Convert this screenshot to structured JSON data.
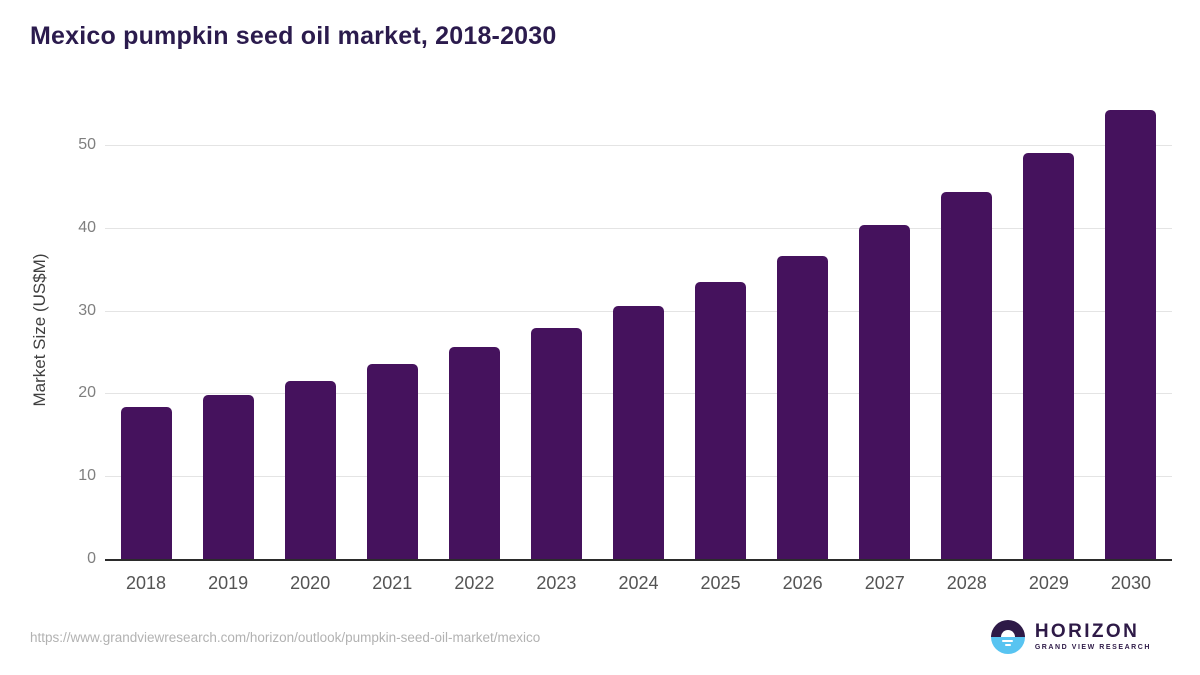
{
  "title": "Mexico pumpkin seed oil market, 2018-2030",
  "chart_data": {
    "type": "bar",
    "title": "Mexico pumpkin seed oil market, 2018-2030",
    "categories": [
      "2018",
      "2019",
      "2020",
      "2021",
      "2022",
      "2023",
      "2024",
      "2025",
      "2026",
      "2027",
      "2028",
      "2029",
      "2030"
    ],
    "values": [
      18.4,
      19.8,
      21.5,
      23.5,
      25.6,
      27.9,
      30.5,
      33.4,
      36.6,
      40.3,
      44.3,
      49.0,
      54.2
    ],
    "xlabel": "",
    "ylabel": "Market Size (US$M)",
    "ylim": [
      0,
      55.5
    ],
    "yticks": [
      0,
      10,
      20,
      30,
      40,
      50
    ],
    "grid": true,
    "legend": "none",
    "bar_color": "#45125d"
  },
  "colors": {
    "title_text": "#2b1b4d",
    "bar": "#45125d",
    "gridline": "#e4e4e4",
    "axis_line": "#2b2b2b",
    "y_tick_text": "#7f7f7f",
    "x_tick_text": "#545454",
    "axis_title_text": "#3f3f3f",
    "url_text": "#b2b2b2",
    "logo_purple": "#2e1a47",
    "logo_blue": "#58c4f1"
  },
  "footer": {
    "source_url": "https://www.grandviewresearch.com/horizon/outlook/pumpkin-seed-oil-market/mexico",
    "logo": {
      "name": "HORIZON",
      "subtitle": "GRAND VIEW RESEARCH"
    }
  }
}
